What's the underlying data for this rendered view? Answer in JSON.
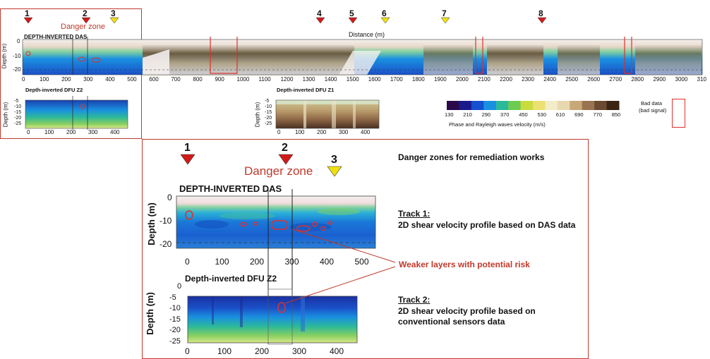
{
  "colors": {
    "accent_red": "#c0392b",
    "marker_red": "#d11a1a",
    "marker_yellow": "#f0e010",
    "scale": [
      "#2a0a4a",
      "#1a1a8a",
      "#1450d0",
      "#1a90e0",
      "#2cb89a",
      "#6ecb52",
      "#c8dc40",
      "#ece070",
      "#f2ecc8",
      "#e8d8b0",
      "#c8a878",
      "#9a7450",
      "#6a4a30",
      "#3a2414"
    ]
  },
  "top": {
    "markers": [
      {
        "label": "1",
        "color": "red"
      },
      {
        "label": "2",
        "color": "red"
      },
      {
        "label": "3",
        "color": "yellow"
      },
      {
        "label": "4",
        "color": "red"
      },
      {
        "label": "5",
        "color": "red"
      },
      {
        "label": "6",
        "color": "yellow"
      },
      {
        "label": "7",
        "color": "yellow"
      },
      {
        "label": "8",
        "color": "red"
      }
    ],
    "danger_zone": "Danger zone",
    "distance_label": "Distance (m)",
    "das_title": "DEPTH-INVERTED DAS",
    "depth_label": "Depth (m)",
    "das_y_ticks": [
      "0",
      "-10",
      "-20"
    ],
    "das_x_ticks": [
      "0",
      "100",
      "200",
      "300",
      "400",
      "500",
      "600",
      "700",
      "800",
      "900",
      "1000",
      "1100",
      "1200",
      "1300",
      "1400",
      "1500",
      "1600",
      "1700",
      "1800",
      "1900",
      "2000",
      "2100",
      "2200",
      "2300",
      "2400",
      "2500",
      "2600",
      "2700",
      "2800",
      "2900",
      "3000",
      "310"
    ],
    "z2_title": "Depth-inverted DFU Z2",
    "z1_title": "Depth-inverted DFU Z1",
    "small_y_ticks": [
      "-5",
      "-10",
      "-15",
      "-20",
      "-25"
    ],
    "z2_x_ticks": [
      "0",
      "100",
      "200",
      "300",
      "400"
    ],
    "z1_x_ticks": [
      "0",
      "100",
      "200",
      "300",
      "400"
    ],
    "legend_ticks": [
      "130",
      "210",
      "290",
      "370",
      "450",
      "530",
      "610",
      "690",
      "770",
      "850"
    ],
    "legend_caption": "Phase and Rayleigh waves velocity (m/s)",
    "bad_data_line1": "Bad data",
    "bad_data_line2": "(bad signal)"
  },
  "zoom": {
    "markers": [
      {
        "label": "1",
        "color": "red"
      },
      {
        "label": "2",
        "color": "red"
      },
      {
        "label": "3",
        "color": "yellow"
      }
    ],
    "danger_zone": "Danger zone",
    "das_title": "DEPTH-INVERTED DAS",
    "depth_label": "Depth (m)",
    "das_y_ticks": [
      "0",
      "-10",
      "-20"
    ],
    "das_x_ticks": [
      "0",
      "100",
      "200",
      "300",
      "400",
      "500"
    ],
    "z2_title": "Depth-inverted DFU Z2",
    "z2_y_ticks": [
      "0",
      "-5",
      "-10",
      "-15",
      "-20",
      "-25"
    ],
    "z2_x_ticks": [
      "0",
      "100",
      "200",
      "300",
      "400"
    ]
  },
  "annotations": {
    "heading": "Danger zones for remediation works",
    "track1_title": "Track 1:",
    "track1_desc": "2D shear velocity profile based on DAS data",
    "weaker": "Weaker layers with potential risk",
    "track2_title": "Track 2:",
    "track2_desc_1": "2D shear velocity profile based on",
    "track2_desc_2": "conventional sensors data"
  }
}
